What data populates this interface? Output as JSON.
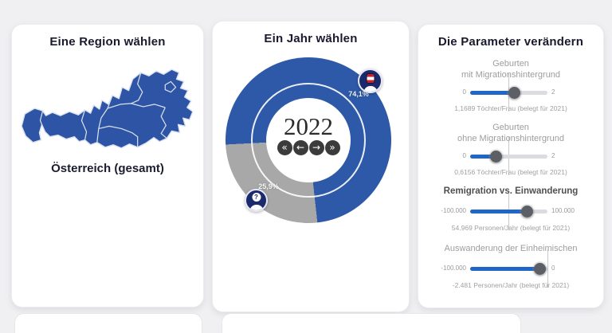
{
  "app": {
    "background": "#f0f0f2"
  },
  "region_panel": {
    "title": "Eine Region wählen",
    "region_label": "Österreich (gesamt)",
    "map_fill_color": "#2e55a5",
    "map_border_color": "#dbe2f0"
  },
  "year_panel": {
    "title": "Ein Jahr wählen",
    "year": "2022",
    "nav": {
      "first": "«",
      "prev": "←",
      "next": "→",
      "last": "»"
    },
    "donut": {
      "major_pct_label": "74,1%",
      "minor_pct_label": "25,9%",
      "major_value": 74.1,
      "minor_value": 25.9,
      "major_color": "#2d59a8",
      "minor_color": "#a8a8a8"
    }
  },
  "params_panel": {
    "title": "Die Parameter verändern",
    "sliders": [
      {
        "name": "geburten-mit-migrationshintergrund",
        "label_lines": [
          "Geburten",
          "mit Migrationshintergrund"
        ],
        "min_label": "0",
        "max_label": "2",
        "value": 1.1689,
        "min": 0,
        "max": 2,
        "percent": 58.4,
        "ref_percent": 50,
        "value_label": "1,1689 Töchter/Frau (belegt für 2021)",
        "emphasis": false
      },
      {
        "name": "geburten-ohne-migrationshintergrund",
        "label_lines": [
          "Geburten",
          "ohne Migrationshintergrund"
        ],
        "min_label": "0",
        "max_label": "2",
        "value": 0.6156,
        "min": 0,
        "max": 2,
        "percent": 30.8,
        "ref_percent": 50,
        "value_label": "0,6156 Töchter/Frau (belegt für 2021)",
        "emphasis": false
      },
      {
        "name": "remigration-vs-einwanderung",
        "label_lines": [
          "Remigration vs. Einwanderung"
        ],
        "min_label": "-100.000",
        "max_label": "100.000",
        "value": 54969,
        "min": -100000,
        "max": 100000,
        "percent": 77.5,
        "ref_percent": 50,
        "value_label": "54.969 Personen/Jahr (belegt für 2021)",
        "emphasis": true
      },
      {
        "name": "auswanderung-der-einheimischen",
        "label_lines": [
          "Auswanderung der Einheimischen"
        ],
        "min_label": "-100.000",
        "max_label": "0",
        "value": -2481,
        "min": -100000,
        "max": 0,
        "percent": 97.5,
        "ref_percent": 100,
        "value_label": "-2.481 Personen/Jahr (belegt für 2021)",
        "emphasis": false
      }
    ]
  },
  "chart_data": {
    "type": "pie",
    "subtype": "donut",
    "center_label": "2022",
    "labels": [
      "74,1%",
      "25,9%"
    ],
    "values": [
      74.1,
      25.9
    ],
    "colors": [
      "#2d59a8",
      "#a8a8a8"
    ],
    "legend_position": "none",
    "annotations": [
      "74,1%",
      "25,9%"
    ]
  }
}
